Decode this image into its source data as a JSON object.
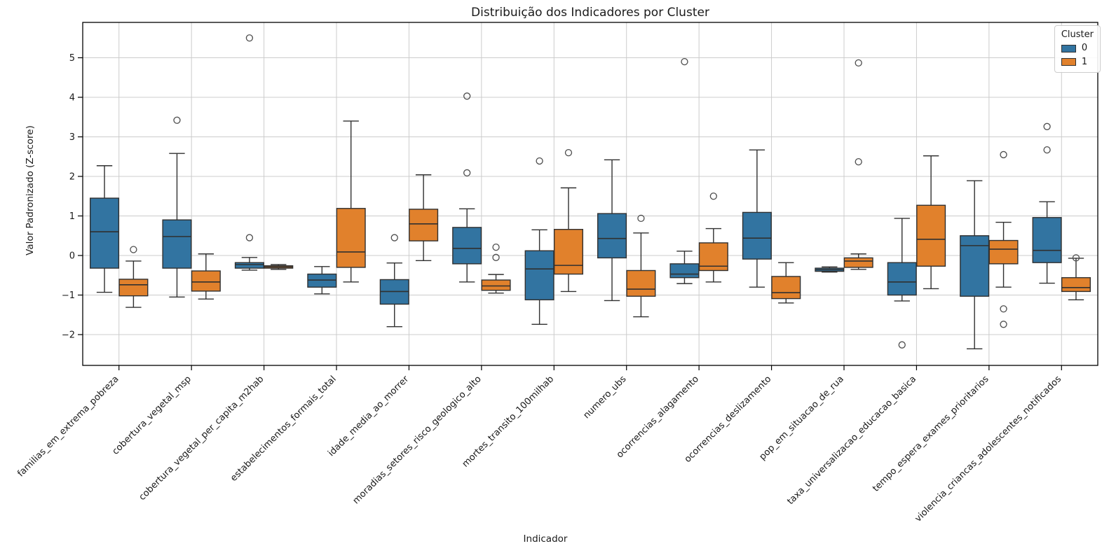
{
  "chart_data": {
    "type": "box",
    "title": "Distribuição dos Indicadores por Cluster",
    "xlabel": "Indicador",
    "ylabel": "Valor Padronizado (Z-score)",
    "ylim": [
      -2.78,
      5.89
    ],
    "ytick_values": [
      -2,
      -1,
      0,
      1,
      2,
      3,
      4,
      5
    ],
    "ytick_labels": [
      "−2",
      "−1",
      "0",
      "1",
      "2",
      "3",
      "4",
      "5"
    ],
    "grid": true,
    "legend": {
      "title": "Cluster",
      "position": "upper right",
      "entries": [
        {
          "label": "0",
          "color": "#3274A1"
        },
        {
          "label": "1",
          "color": "#E1812C"
        }
      ]
    },
    "categories": [
      "familias_em_extrema_pobreza",
      "cobertura_vegetal_msp",
      "cobertura_vegetal_per_capita_m2hab",
      "estabelecimentos_formais_total",
      "idade_media_ao_morrer",
      "moradias_setores_risco_geologico_alto",
      "mortes_transito_100milhab",
      "numero_ubs",
      "ocorrencias_alagamento",
      "ocorrencias_deslizamento",
      "pop_em_situacao_de_rua",
      "taxa_universalizacao_educacao_basica",
      "tempo_espera_exames_prioritarios",
      "violencia_criancas_adolescentes_notificados"
    ],
    "series": [
      {
        "name": "0",
        "color": "#3274A1",
        "boxes": [
          {
            "whislo": -0.93,
            "q1": -0.32,
            "med": 0.6,
            "q3": 1.45,
            "whishi": 2.27,
            "fliers": []
          },
          {
            "whislo": -1.05,
            "q1": -0.32,
            "med": 0.48,
            "q3": 0.9,
            "whishi": 2.58,
            "fliers": [
              3.42
            ]
          },
          {
            "whislo": -0.37,
            "q1": -0.32,
            "med": -0.23,
            "q3": -0.18,
            "whishi": -0.05,
            "fliers": [
              5.5,
              0.45
            ]
          },
          {
            "whislo": -0.97,
            "q1": -0.8,
            "med": -0.62,
            "q3": -0.47,
            "whishi": -0.28,
            "fliers": []
          },
          {
            "whislo": -1.8,
            "q1": -1.23,
            "med": -0.91,
            "q3": -0.61,
            "whishi": -0.19,
            "fliers": [
              0.45
            ]
          },
          {
            "whislo": -0.67,
            "q1": -0.21,
            "med": 0.18,
            "q3": 0.71,
            "whishi": 1.18,
            "fliers": [
              4.03,
              2.09
            ]
          },
          {
            "whislo": -1.74,
            "q1": -1.12,
            "med": -0.34,
            "q3": 0.12,
            "whishi": 0.65,
            "fliers": [
              2.39
            ]
          },
          {
            "whislo": -1.14,
            "q1": -0.06,
            "med": 0.43,
            "q3": 1.06,
            "whishi": 2.42,
            "fliers": []
          },
          {
            "whislo": -0.71,
            "q1": -0.56,
            "med": -0.47,
            "q3": -0.21,
            "whishi": 0.11,
            "fliers": [
              4.9
            ]
          },
          {
            "whislo": -0.8,
            "q1": -0.09,
            "med": 0.44,
            "q3": 1.09,
            "whishi": 2.67,
            "fliers": []
          },
          {
            "whislo": -0.42,
            "q1": -0.4,
            "med": -0.36,
            "q3": -0.32,
            "whishi": -0.29,
            "fliers": []
          },
          {
            "whislo": -1.15,
            "q1": -1.0,
            "med": -0.67,
            "q3": -0.18,
            "whishi": 0.94,
            "fliers": [
              -2.26
            ]
          },
          {
            "whislo": -2.36,
            "q1": -1.03,
            "med": 0.25,
            "q3": 0.5,
            "whishi": 1.89,
            "fliers": []
          },
          {
            "whislo": -0.7,
            "q1": -0.18,
            "med": 0.13,
            "q3": 0.96,
            "whishi": 1.36,
            "fliers": [
              3.26,
              2.67
            ]
          }
        ]
      },
      {
        "name": "1",
        "color": "#E1812C",
        "boxes": [
          {
            "whislo": -1.31,
            "q1": -1.02,
            "med": -0.74,
            "q3": -0.6,
            "whishi": -0.14,
            "fliers": [
              0.15
            ]
          },
          {
            "whislo": -1.1,
            "q1": -0.9,
            "med": -0.67,
            "q3": -0.39,
            "whishi": 0.04,
            "fliers": []
          },
          {
            "whislo": -0.35,
            "q1": -0.32,
            "med": -0.29,
            "q3": -0.26,
            "whishi": -0.23,
            "fliers": []
          },
          {
            "whislo": -0.67,
            "q1": -0.3,
            "med": 0.09,
            "q3": 1.19,
            "whishi": 3.4,
            "fliers": []
          },
          {
            "whislo": -0.13,
            "q1": 0.37,
            "med": 0.8,
            "q3": 1.17,
            "whishi": 2.04,
            "fliers": []
          },
          {
            "whislo": -0.95,
            "q1": -0.88,
            "med": -0.77,
            "q3": -0.62,
            "whishi": -0.48,
            "fliers": [
              0.21,
              -0.05
            ]
          },
          {
            "whislo": -0.91,
            "q1": -0.47,
            "med": -0.25,
            "q3": 0.66,
            "whishi": 1.71,
            "fliers": [
              2.6
            ]
          },
          {
            "whislo": -1.55,
            "q1": -1.03,
            "med": -0.85,
            "q3": -0.38,
            "whishi": 0.57,
            "fliers": [
              0.94
            ]
          },
          {
            "whislo": -0.67,
            "q1": -0.38,
            "med": -0.27,
            "q3": 0.32,
            "whishi": 0.68,
            "fliers": [
              1.5
            ]
          },
          {
            "whislo": -1.2,
            "q1": -1.09,
            "med": -0.94,
            "q3": -0.53,
            "whishi": -0.18,
            "fliers": []
          },
          {
            "whislo": -0.35,
            "q1": -0.3,
            "med": -0.14,
            "q3": -0.06,
            "whishi": 0.04,
            "fliers": [
              4.87,
              2.37
            ]
          },
          {
            "whislo": -0.84,
            "q1": -0.27,
            "med": 0.41,
            "q3": 1.27,
            "whishi": 2.52,
            "fliers": []
          },
          {
            "whislo": -0.8,
            "q1": -0.21,
            "med": 0.16,
            "q3": 0.38,
            "whishi": 0.84,
            "fliers": [
              2.55,
              -1.35,
              -1.74
            ]
          },
          {
            "whislo": -1.12,
            "q1": -0.91,
            "med": -0.81,
            "q3": -0.56,
            "whishi": -0.07,
            "fliers": [
              -0.06
            ]
          }
        ]
      }
    ],
    "style": {
      "line_color": "#303030",
      "grid_color": "#cccccc",
      "spine_color": "#000000",
      "background": "#ffffff"
    }
  }
}
